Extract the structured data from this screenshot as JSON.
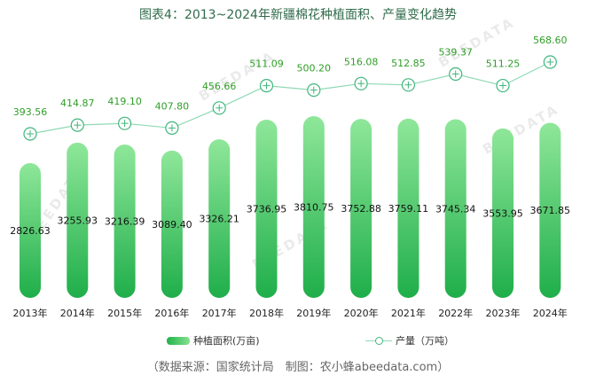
{
  "title": "图表4：2013~2024年新疆棉花种植面积、产量变化趋势",
  "source": "（数据来源：国家统计局　制图：农小蜂abeedata.com）",
  "watermark": "BEEDATA",
  "colors": {
    "bar_top": "#8fe79a",
    "bar_bottom": "#1fae4a",
    "line": "#8fd9b4",
    "marker": "#3fb67c",
    "line_label": "#2e9e27",
    "bar_label": "#111111"
  },
  "chart_data": {
    "type": "bar",
    "categories": [
      "2013年",
      "2014年",
      "2015年",
      "2016年",
      "2017年",
      "2018年",
      "2019年",
      "2020年",
      "2021年",
      "2022年",
      "2023年",
      "2024年"
    ],
    "series": [
      {
        "name": "种植面积(万亩)",
        "type": "bar",
        "values": [
          2826.63,
          3255.93,
          3216.39,
          3089.4,
          3326.21,
          3736.95,
          3810.75,
          3752.88,
          3759.11,
          3745.34,
          3553.95,
          3671.85
        ],
        "labels": [
          "2826.63",
          "3255.93",
          "3216.39",
          "3089.40",
          "3326.21",
          "3736.95",
          "3810.75",
          "3752.88",
          "3759.11",
          "3745.34",
          "3553.95",
          "3671.85"
        ]
      },
      {
        "name": "产量（万吨）",
        "type": "line",
        "values": [
          393.56,
          414.87,
          419.1,
          407.8,
          456.66,
          511.09,
          500.2,
          516.08,
          512.85,
          539.37,
          511.25,
          568.6
        ],
        "labels": [
          "393.56",
          "414.87",
          "419.10",
          "407.80",
          "456.66",
          "511.09",
          "500.20",
          "516.08",
          "512.85",
          "539.37",
          "511.25",
          "568.60"
        ]
      }
    ],
    "legend_position": "bottom",
    "grid": false
  }
}
